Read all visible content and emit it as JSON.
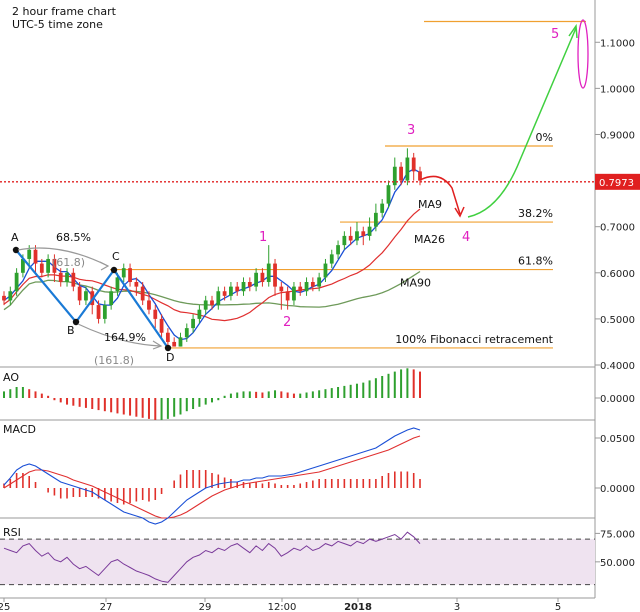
{
  "header": {
    "line1": "2 hour frame chart",
    "line2": "UTC-5 time zone"
  },
  "chart_data": {
    "type": "candlestick",
    "x_ticks": [
      "25",
      "27",
      "29",
      "12:00",
      "2018",
      "3",
      "5"
    ],
    "main_y_ticks": [
      "1.1000",
      "1.0000",
      "0.9000",
      "0.8000",
      "0.7000",
      "0.6000",
      "0.5000",
      "0.4000"
    ],
    "main_ylim": [
      0.4,
      1.17
    ],
    "current_price": "0.7973",
    "candles": [
      [
        0.55,
        0.54,
        0.56,
        0.53
      ],
      [
        0.54,
        0.56,
        0.57,
        0.53
      ],
      [
        0.56,
        0.6,
        0.61,
        0.55
      ],
      [
        0.6,
        0.63,
        0.64,
        0.59
      ],
      [
        0.63,
        0.65,
        0.66,
        0.61
      ],
      [
        0.65,
        0.62,
        0.66,
        0.6
      ],
      [
        0.62,
        0.6,
        0.63,
        0.59
      ],
      [
        0.6,
        0.63,
        0.64,
        0.59
      ],
      [
        0.63,
        0.6,
        0.64,
        0.58
      ],
      [
        0.6,
        0.58,
        0.61,
        0.57
      ],
      [
        0.58,
        0.6,
        0.61,
        0.57
      ],
      [
        0.6,
        0.57,
        0.61,
        0.56
      ],
      [
        0.57,
        0.54,
        0.58,
        0.53
      ],
      [
        0.54,
        0.56,
        0.57,
        0.53
      ],
      [
        0.56,
        0.53,
        0.57,
        0.51
      ],
      [
        0.53,
        0.5,
        0.54,
        0.49
      ],
      [
        0.5,
        0.53,
        0.54,
        0.49
      ],
      [
        0.53,
        0.56,
        0.57,
        0.52
      ],
      [
        0.56,
        0.59,
        0.6,
        0.55
      ],
      [
        0.59,
        0.61,
        0.62,
        0.58
      ],
      [
        0.61,
        0.58,
        0.62,
        0.57
      ],
      [
        0.58,
        0.57,
        0.59,
        0.55
      ],
      [
        0.57,
        0.54,
        0.58,
        0.53
      ],
      [
        0.54,
        0.52,
        0.56,
        0.51
      ],
      [
        0.52,
        0.5,
        0.53,
        0.48
      ],
      [
        0.5,
        0.47,
        0.51,
        0.46
      ],
      [
        0.47,
        0.45,
        0.48,
        0.44
      ],
      [
        0.45,
        0.44,
        0.46,
        0.44
      ],
      [
        0.44,
        0.46,
        0.47,
        0.44
      ],
      [
        0.46,
        0.48,
        0.49,
        0.45
      ],
      [
        0.48,
        0.5,
        0.51,
        0.47
      ],
      [
        0.5,
        0.52,
        0.53,
        0.49
      ],
      [
        0.52,
        0.54,
        0.55,
        0.51
      ],
      [
        0.54,
        0.53,
        0.55,
        0.52
      ],
      [
        0.53,
        0.56,
        0.57,
        0.52
      ],
      [
        0.56,
        0.55,
        0.57,
        0.54
      ],
      [
        0.55,
        0.57,
        0.58,
        0.54
      ],
      [
        0.57,
        0.56,
        0.58,
        0.55
      ],
      [
        0.56,
        0.58,
        0.59,
        0.55
      ],
      [
        0.58,
        0.57,
        0.59,
        0.56
      ],
      [
        0.57,
        0.6,
        0.61,
        0.56
      ],
      [
        0.6,
        0.58,
        0.61,
        0.57
      ],
      [
        0.58,
        0.62,
        0.66,
        0.57
      ],
      [
        0.62,
        0.57,
        0.63,
        0.55
      ],
      [
        0.57,
        0.56,
        0.58,
        0.52
      ],
      [
        0.56,
        0.54,
        0.57,
        0.52
      ],
      [
        0.54,
        0.57,
        0.58,
        0.53
      ],
      [
        0.57,
        0.56,
        0.58,
        0.55
      ],
      [
        0.56,
        0.58,
        0.59,
        0.55
      ],
      [
        0.58,
        0.57,
        0.59,
        0.56
      ],
      [
        0.57,
        0.59,
        0.6,
        0.56
      ],
      [
        0.59,
        0.62,
        0.63,
        0.58
      ],
      [
        0.62,
        0.64,
        0.65,
        0.61
      ],
      [
        0.64,
        0.66,
        0.67,
        0.63
      ],
      [
        0.66,
        0.68,
        0.69,
        0.65
      ],
      [
        0.68,
        0.67,
        0.7,
        0.66
      ],
      [
        0.67,
        0.69,
        0.71,
        0.66
      ],
      [
        0.69,
        0.68,
        0.7,
        0.66
      ],
      [
        0.68,
        0.7,
        0.72,
        0.67
      ],
      [
        0.7,
        0.73,
        0.75,
        0.69
      ],
      [
        0.73,
        0.75,
        0.76,
        0.72
      ],
      [
        0.75,
        0.79,
        0.8,
        0.74
      ],
      [
        0.79,
        0.83,
        0.85,
        0.78
      ],
      [
        0.83,
        0.8,
        0.84,
        0.79
      ],
      [
        0.8,
        0.85,
        0.87,
        0.79
      ],
      [
        0.85,
        0.82,
        0.86,
        0.8
      ],
      [
        0.82,
        0.8,
        0.83,
        0.79
      ]
    ],
    "ma9_label": "MA9",
    "ma26_label": "MA26",
    "ma90_label": "MA90",
    "fib_labels": [
      "0%",
      "38.2%",
      "61.8%",
      "100% Fibonacci retracement"
    ],
    "fib_levels": [
      0.875,
      0.71,
      0.607,
      0.437
    ],
    "target_level": 1.145,
    "pattern_points": [
      "A",
      "B",
      "C",
      "D"
    ],
    "pattern_ratios": [
      "68.5%",
      "(61.8)",
      "164.9%",
      "(161.8)"
    ],
    "wave_labels": [
      "1",
      "2",
      "3",
      "4",
      "5"
    ],
    "ao_label": "AO",
    "ao_ticks": [
      "0.0000"
    ],
    "ao_values": [
      0.3,
      0.4,
      0.5,
      0.5,
      0.4,
      0.3,
      0.2,
      0.1,
      -0.1,
      -0.2,
      -0.3,
      -0.35,
      -0.4,
      -0.45,
      -0.5,
      -0.55,
      -0.6,
      -0.65,
      -0.7,
      -0.75,
      -0.8,
      -0.85,
      -0.9,
      -0.95,
      -1.0,
      -1.0,
      -0.95,
      -0.85,
      -0.75,
      -0.6,
      -0.5,
      -0.4,
      -0.3,
      -0.2,
      -0.1,
      0.1,
      0.2,
      0.25,
      0.3,
      0.3,
      0.28,
      0.25,
      0.3,
      0.35,
      0.3,
      0.25,
      0.2,
      0.2,
      0.25,
      0.3,
      0.35,
      0.4,
      0.45,
      0.5,
      0.55,
      0.6,
      0.65,
      0.7,
      0.8,
      0.9,
      1.0,
      1.1,
      1.2,
      1.3,
      1.35,
      1.3,
      1.2
    ],
    "macd_label": "MACD",
    "macd_ticks": [
      "0.0500",
      "0.0000"
    ],
    "macd_line": [
      0.003,
      0.01,
      0.018,
      0.022,
      0.024,
      0.022,
      0.018,
      0.014,
      0.01,
      0.006,
      0.004,
      0.002,
      0.0,
      -0.002,
      -0.004,
      -0.008,
      -0.012,
      -0.016,
      -0.02,
      -0.024,
      -0.026,
      -0.028,
      -0.03,
      -0.034,
      -0.036,
      -0.034,
      -0.03,
      -0.024,
      -0.018,
      -0.012,
      -0.008,
      -0.004,
      0.0,
      0.002,
      0.004,
      0.005,
      0.006,
      0.006,
      0.008,
      0.008,
      0.01,
      0.01,
      0.012,
      0.012,
      0.012,
      0.013,
      0.014,
      0.016,
      0.018,
      0.02,
      0.022,
      0.024,
      0.026,
      0.028,
      0.03,
      0.032,
      0.034,
      0.036,
      0.038,
      0.04,
      0.044,
      0.048,
      0.052,
      0.055,
      0.058,
      0.06,
      0.058
    ],
    "macd_signal": [
      0.0,
      0.004,
      0.008,
      0.012,
      0.016,
      0.018,
      0.018,
      0.017,
      0.015,
      0.013,
      0.011,
      0.008,
      0.006,
      0.004,
      0.002,
      -0.001,
      -0.004,
      -0.007,
      -0.01,
      -0.013,
      -0.016,
      -0.019,
      -0.022,
      -0.025,
      -0.028,
      -0.03,
      -0.03,
      -0.029,
      -0.027,
      -0.024,
      -0.02,
      -0.016,
      -0.012,
      -0.008,
      -0.005,
      -0.002,
      0.0,
      0.002,
      0.004,
      0.005,
      0.006,
      0.007,
      0.008,
      0.009,
      0.01,
      0.011,
      0.012,
      0.013,
      0.014,
      0.015,
      0.016,
      0.018,
      0.02,
      0.022,
      0.024,
      0.026,
      0.028,
      0.03,
      0.032,
      0.034,
      0.036,
      0.038,
      0.041,
      0.044,
      0.047,
      0.05,
      0.052
    ],
    "rsi_label": "RSI",
    "rsi_ticks": [
      "75.000",
      "50.000"
    ],
    "rsi_band": [
      30,
      70
    ],
    "rsi_values": [
      62,
      60,
      58,
      64,
      66,
      60,
      55,
      58,
      52,
      50,
      54,
      48,
      44,
      46,
      42,
      38,
      44,
      50,
      52,
      48,
      45,
      42,
      40,
      38,
      35,
      33,
      32,
      38,
      44,
      50,
      54,
      56,
      60,
      58,
      62,
      60,
      64,
      66,
      62,
      58,
      64,
      60,
      66,
      62,
      55,
      58,
      62,
      60,
      64,
      60,
      62,
      66,
      64,
      68,
      66,
      64,
      68,
      66,
      70,
      68,
      70,
      72,
      74,
      70,
      76,
      72,
      66
    ],
    "colors": {
      "up": "#2ea02e",
      "down": "#e0302a",
      "ma9": "#1a4fd6",
      "ma26": "#e03030",
      "ma90": "#6e9a5a",
      "fib": "#f0a030",
      "price_line": "#e02020",
      "wave": "#e020c0",
      "pattern": "#1a7ad6",
      "projection_up": "#40d040",
      "projection_down": "#e02020",
      "rsi_fill": "#efe3f0",
      "rsi_line": "#7a3a9a"
    }
  }
}
